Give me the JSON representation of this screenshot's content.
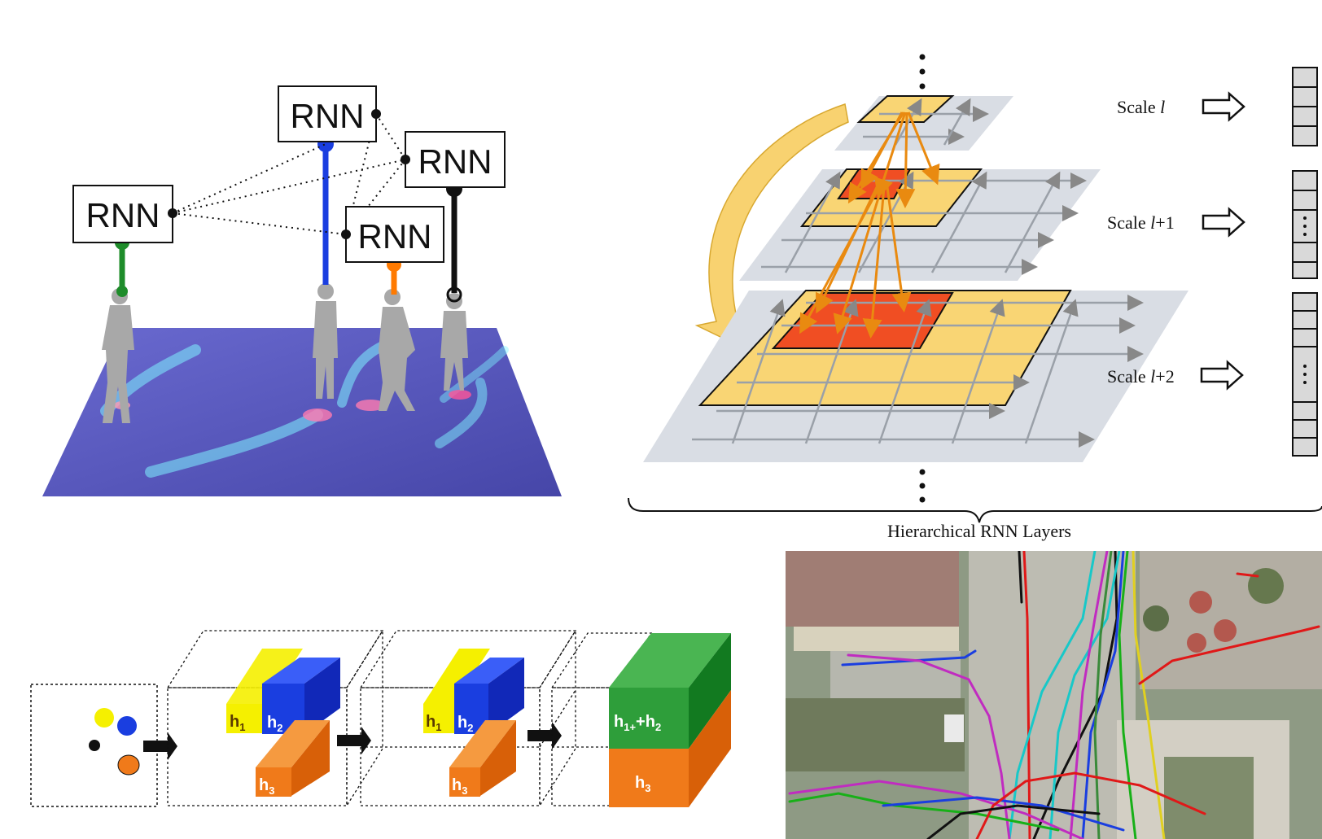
{
  "social_panel": {
    "rnn_labels": [
      "RNN",
      "RNN",
      "RNN",
      "RNN"
    ]
  },
  "hierarchy_panel": {
    "scale_labels": [
      {
        "prefix": "Scale ",
        "var": "l",
        "suffix": ""
      },
      {
        "prefix": "Scale ",
        "var": "l",
        "suffix": "+1"
      },
      {
        "prefix": "Scale ",
        "var": "l",
        "suffix": "+2"
      }
    ],
    "brace_label": "Hierarchical RNN Layers"
  },
  "pooling_panel": {
    "stage2": {
      "h1": "h",
      "h1_sub": "1",
      "h2": "h",
      "h2_sub": "2",
      "h3": "h",
      "h3_sub": "3"
    },
    "stage3": {
      "h1": "h",
      "h1_sub": "1",
      "h2": "h",
      "h2_sub": "2",
      "h3": "h",
      "h3_sub": "3"
    },
    "stage4": {
      "merged_a": "h",
      "merged_a_sub": "1+",
      "merged_plus": "+h",
      "merged_b_sub": "2",
      "h3": "h",
      "h3_sub": "3"
    }
  },
  "colors": {
    "green": "#1e8c2a",
    "blue": "#1a3ee0",
    "orange": "#ff7a00",
    "black": "#111111",
    "floor": "#5b5bb8",
    "yellow": "#f6d365",
    "red": "#f04e23",
    "cube_green": "#2e9e3a",
    "cube_orange": "#f07a1a",
    "cube_blue": "#1a3ee0",
    "cube_yellow": "#f5f000"
  }
}
